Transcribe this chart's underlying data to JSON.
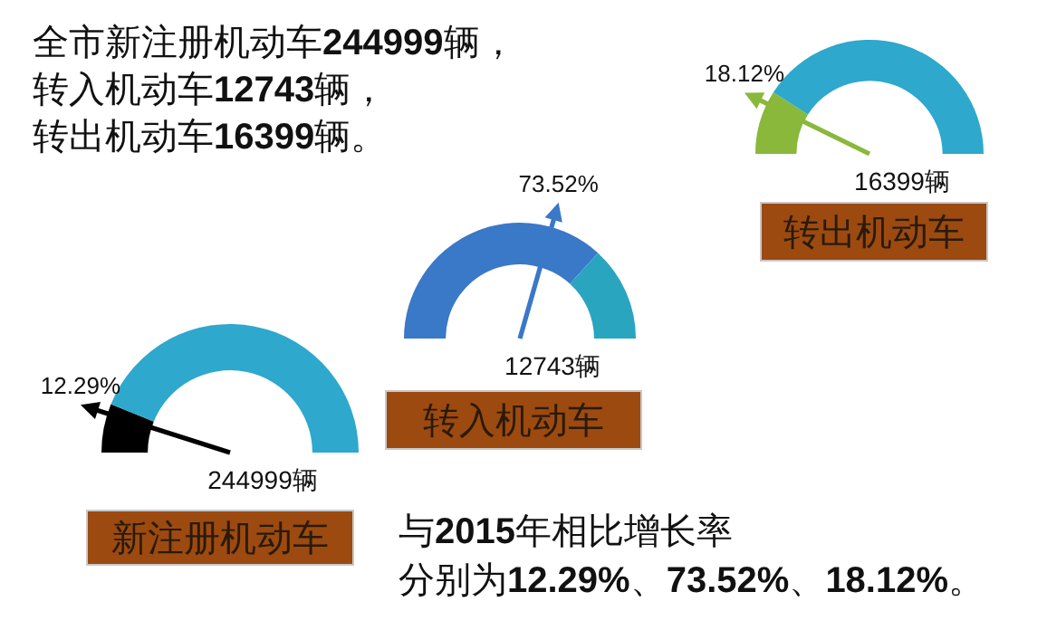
{
  "chart_data": [
    {
      "type": "other",
      "annotations": [
        "全市新注册机动车**244999**辆，",
        "转入机动车**12743**辆，",
        "转出机动车**16399**辆。"
      ]
    },
    {
      "type": "donut",
      "title": "转出机动车",
      "categories": [
        null,
        null
      ],
      "values": [
        18.12,
        81.88
      ],
      "colors": [
        "#8ab83a",
        "#2ea8cc"
      ],
      "value_labels": [
        "18.12%",
        null
      ],
      "annotations": [
        "16399辆"
      ]
    },
    {
      "type": "donut",
      "title": "转入机动车",
      "categories": [
        null,
        null
      ],
      "values": [
        73.52,
        26.48
      ],
      "colors": [
        "#3a78c8",
        "#2aa5c0"
      ],
      "value_labels": [
        "73.52%",
        null
      ],
      "annotations": [
        "12743辆"
      ]
    },
    {
      "type": "donut",
      "title": "新注册机动车",
      "categories": [
        null,
        null
      ],
      "values": [
        12.29,
        87.71
      ],
      "colors": [
        "#000000",
        "#2ea8cc"
      ],
      "value_labels": [
        "12.29%",
        null
      ],
      "annotations": [
        "244999辆"
      ]
    },
    {
      "type": "other",
      "annotations": [
        "与**2015**年相比增长率",
        "分别为**12.29%**、**73.52%**、**18.12%**。"
      ]
    }
  ]
}
